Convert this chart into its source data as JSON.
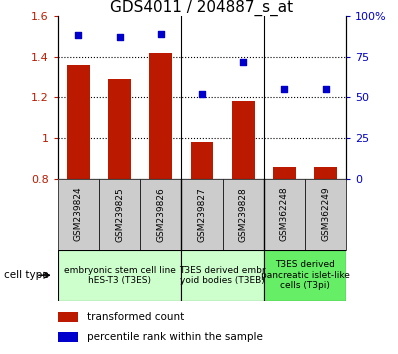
{
  "title": "GDS4011 / 204887_s_at",
  "samples": [
    "GSM239824",
    "GSM239825",
    "GSM239826",
    "GSM239827",
    "GSM239828",
    "GSM362248",
    "GSM362249"
  ],
  "bar_values": [
    1.36,
    1.29,
    1.42,
    0.98,
    1.18,
    0.86,
    0.86
  ],
  "scatter_values": [
    88,
    87,
    89,
    52,
    72,
    55,
    55
  ],
  "ylim_left": [
    0.8,
    1.6
  ],
  "ylim_right": [
    0,
    100
  ],
  "yticks_left": [
    0.8,
    1.0,
    1.2,
    1.4,
    1.6
  ],
  "ytick_labels_left": [
    "0.8",
    "1",
    "1.2",
    "1.4",
    "1.6"
  ],
  "yticks_right": [
    0,
    25,
    50,
    75,
    100
  ],
  "ytick_labels_right": [
    "0",
    "25",
    "50",
    "75",
    "100%"
  ],
  "bar_color": "#bb1a00",
  "scatter_color": "#0000cc",
  "group_configs": [
    {
      "indices": [
        0,
        1,
        2
      ],
      "label": "embryonic stem cell line\nhES-T3 (T3ES)",
      "color": "#ccffcc"
    },
    {
      "indices": [
        3,
        4
      ],
      "label": "T3ES derived embr\nyoid bodies (T3EB)",
      "color": "#ccffcc"
    },
    {
      "indices": [
        5,
        6
      ],
      "label": "T3ES derived\npancreatic islet-like\ncells (T3pi)",
      "color": "#66ee66"
    }
  ],
  "legend_bar_label": "transformed count",
  "legend_scatter_label": "percentile rank within the sample",
  "cell_type_label": "cell type",
  "sample_box_color": "#cccccc",
  "title_fontsize": 11,
  "tick_fontsize": 8,
  "sample_fontsize": 6.5,
  "group_fontsize": 6.5,
  "legend_fontsize": 7.5
}
